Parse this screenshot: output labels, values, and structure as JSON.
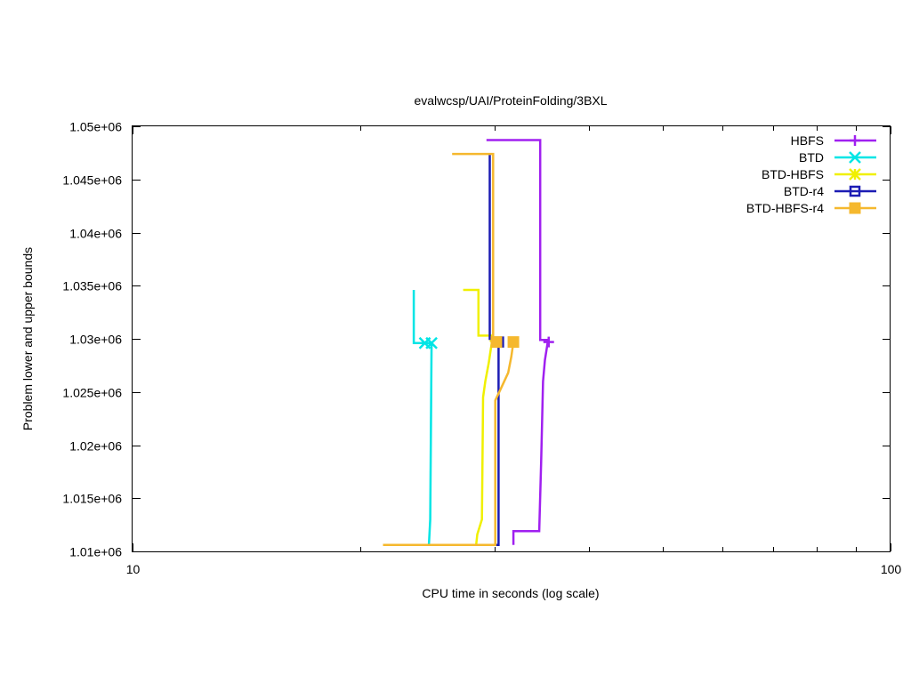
{
  "chart_data": {
    "type": "line",
    "title": "evalwcsp/UAI/ProteinFolding/3BXL",
    "xlabel": "CPU time in seconds (log scale)",
    "ylabel": "Problem lower and upper bounds",
    "xscale": "log",
    "xlim": [
      10,
      100
    ],
    "ylim": [
      1010000,
      1050000
    ],
    "x_ticks": [
      {
        "value": 10,
        "label": "10"
      },
      {
        "value": 100,
        "label": "100"
      }
    ],
    "y_ticks": [
      {
        "value": 1010000,
        "label": "1.01e+06"
      },
      {
        "value": 1015000,
        "label": "1.015e+06"
      },
      {
        "value": 1020000,
        "label": "1.02e+06"
      },
      {
        "value": 1025000,
        "label": "1.025e+06"
      },
      {
        "value": 1030000,
        "label": "1.03e+06"
      },
      {
        "value": 1035000,
        "label": "1.035e+06"
      },
      {
        "value": 1040000,
        "label": "1.04e+06"
      },
      {
        "value": 1045000,
        "label": "1.045e+06"
      },
      {
        "value": 1050000,
        "label": "1.05e+06"
      }
    ],
    "grid": false,
    "legend_position": "top-right",
    "series": [
      {
        "name": "HBFS",
        "color": "#a020f0",
        "marker": "plus",
        "upper": [
          [
            29.3,
            1048700
          ],
          [
            34.5,
            1048700
          ],
          [
            34.5,
            1029900
          ],
          [
            35.4,
            1029900
          ],
          [
            35.4,
            1029700
          ]
        ],
        "lower": [
          [
            31.8,
            1010600
          ],
          [
            31.8,
            1011900
          ],
          [
            34.4,
            1011900
          ],
          [
            34.6,
            1018500
          ],
          [
            34.8,
            1026000
          ],
          [
            35.0,
            1028000
          ],
          [
            35.3,
            1029700
          ],
          [
            35.4,
            1029700
          ]
        ],
        "markers": [
          [
            35.4,
            1029700
          ]
        ]
      },
      {
        "name": "BTD",
        "color": "#00e5e5",
        "marker": "x",
        "upper": [
          [
            23.5,
            1034600
          ],
          [
            23.5,
            1029600
          ],
          [
            24.8,
            1029600
          ]
        ],
        "lower": [
          [
            24.6,
            1010600
          ],
          [
            24.7,
            1013000
          ],
          [
            24.8,
            1029600
          ]
        ],
        "markers": [
          [
            24.3,
            1029600
          ],
          [
            24.8,
            1029600
          ]
        ]
      },
      {
        "name": "BTD-HBFS",
        "color": "#f0f000",
        "marker": "star",
        "upper": [
          [
            27.3,
            1034600
          ],
          [
            28.6,
            1034600
          ],
          [
            28.6,
            1030300
          ],
          [
            29.7,
            1030300
          ],
          [
            29.7,
            1029700
          ]
        ],
        "lower": [
          [
            28.4,
            1010600
          ],
          [
            28.5,
            1011600
          ],
          [
            28.9,
            1013000
          ],
          [
            29.0,
            1024500
          ],
          [
            29.2,
            1026000
          ],
          [
            29.5,
            1027700
          ],
          [
            29.7,
            1029100
          ],
          [
            29.8,
            1029700
          ]
        ],
        "markers": [
          [
            30.2,
            1029700
          ]
        ]
      },
      {
        "name": "BTD-r4",
        "color": "#1c1cb4",
        "marker": "square-open",
        "upper": [
          [
            29.6,
            1047400
          ],
          [
            29.6,
            1030000
          ],
          [
            30.4,
            1030000
          ],
          [
            30.4,
            1029700
          ]
        ],
        "lower": [
          [
            29.1,
            1010600
          ],
          [
            30.4,
            1010600
          ],
          [
            30.4,
            1029700
          ]
        ],
        "markers": [
          [
            30.4,
            1029700
          ]
        ]
      },
      {
        "name": "BTD-HBFS-r4",
        "color": "#f5b82e",
        "marker": "square-filled",
        "upper": [
          [
            26.4,
            1047400
          ],
          [
            29.9,
            1047400
          ],
          [
            29.9,
            1029700
          ]
        ],
        "lower": [
          [
            21.4,
            1010600
          ],
          [
            30.1,
            1010600
          ],
          [
            30.1,
            1024200
          ],
          [
            30.7,
            1025500
          ],
          [
            31.3,
            1026800
          ],
          [
            31.6,
            1028300
          ],
          [
            31.8,
            1029700
          ]
        ],
        "markers": [
          [
            30.2,
            1029700
          ],
          [
            31.8,
            1029700
          ]
        ]
      }
    ]
  }
}
